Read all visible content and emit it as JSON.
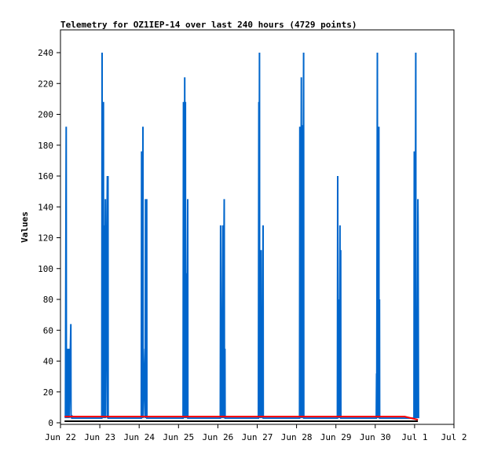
{
  "chart_data": {
    "type": "line",
    "title": "Telemetry for OZ1IEP-14 over last 240 hours (4729 points)",
    "xlabel": "",
    "ylabel": "Values",
    "xlim": [
      0,
      240
    ],
    "ylim": [
      0,
      255
    ],
    "grid": false,
    "legend": "none",
    "x_tick_labels": [
      {
        "label": "Jun 22",
        "hour": 0
      },
      {
        "label": "Jun 23",
        "hour": 24
      },
      {
        "label": "Jun 24",
        "hour": 48
      },
      {
        "label": "Jun 25",
        "hour": 72
      },
      {
        "label": "Jun 26",
        "hour": 96
      },
      {
        "label": "Jun 27",
        "hour": 120
      },
      {
        "label": "Jun 28",
        "hour": 144
      },
      {
        "label": "Jun 29",
        "hour": 168
      },
      {
        "label": "Jun 30",
        "hour": 192
      },
      {
        "label": "Jul 1",
        "hour": 216
      },
      {
        "label": "Jul 2",
        "hour": 240
      }
    ],
    "y_ticks": [
      0,
      20,
      40,
      60,
      80,
      100,
      120,
      140,
      160,
      180,
      200,
      220,
      240
    ],
    "series": [
      {
        "color": "#0066cc",
        "x": [
          3.0,
          3.5,
          3.6,
          4.3,
          4.4,
          5.1,
          5.2,
          6.3,
          6.4,
          6.9,
          7.0,
          7.6,
          7.7,
          8.5,
          25.2,
          25.4,
          25.5,
          25.8,
          25.9,
          26.2,
          26.3,
          26.7,
          26.8,
          27.4,
          27.5,
          28.6,
          28.7,
          29.0,
          29.1,
          49.3,
          49.5,
          49.6,
          49.9,
          50.0,
          50.3,
          50.4,
          51.6,
          51.7,
          51.9,
          52.0,
          52.3,
          52.4,
          52.6,
          52.7,
          74.8,
          75.0,
          75.1,
          75.5,
          75.6,
          75.8,
          75.9,
          76.2,
          76.3,
          76.8,
          76.9,
          77.6,
          77.7,
          78.0,
          78.1,
          97.5,
          97.7,
          97.8,
          98.2,
          98.3,
          99.0,
          99.1,
          99.9,
          100.0,
          100.3,
          100.4,
          120.7,
          121.0,
          121.1,
          121.4,
          121.5,
          121.7,
          121.8,
          122.4,
          122.5,
          123.0,
          123.1,
          123.6,
          123.7,
          145.8,
          146.0,
          146.1,
          146.4,
          146.5,
          146.9,
          147.0,
          147.6,
          147.7,
          148.3,
          148.4,
          168.9,
          169.1,
          169.2,
          169.5,
          169.6,
          169.9,
          170.0,
          170.5,
          170.6,
          170.9,
          171.0,
          192.6,
          192.8,
          192.9,
          193.3,
          193.4,
          193.8,
          193.9,
          194.2,
          194.3,
          194.6,
          194.7,
          215.6,
          215.8,
          215.9,
          216.2,
          216.3,
          216.7,
          216.8,
          217.4,
          217.5,
          218.0,
          218.1,
          218.4
        ],
        "y": [
          3,
          192,
          3,
          48,
          3,
          48,
          3,
          64,
          3,
          5,
          3,
          3,
          3,
          3,
          3,
          240,
          3,
          128,
          3,
          208,
          3,
          128,
          3,
          145,
          3,
          160,
          3,
          160,
          3,
          3,
          176,
          3,
          112,
          3,
          192,
          3,
          48,
          3,
          145,
          3,
          64,
          3,
          145,
          3,
          3,
          208,
          3,
          112,
          3,
          224,
          3,
          208,
          3,
          97,
          3,
          145,
          3,
          3,
          3,
          3,
          128,
          3,
          48,
          3,
          128,
          3,
          145,
          3,
          48,
          3,
          3,
          208,
          3,
          240,
          3,
          80,
          3,
          112,
          3,
          64,
          3,
          128,
          3,
          3,
          192,
          3,
          97,
          3,
          224,
          3,
          193,
          3,
          240,
          3,
          3,
          160,
          3,
          80,
          3,
          48,
          3,
          128,
          3,
          112,
          3,
          3,
          32,
          3,
          240,
          3,
          64,
          3,
          192,
          3,
          80,
          3,
          3,
          176,
          3,
          128,
          3,
          240,
          3,
          32,
          3,
          145,
          128,
          3
        ]
      },
      {
        "color": "#ff0000",
        "x": [
          2.5,
          4.5,
          210.0,
          214.0,
          218.0
        ],
        "y": [
          4,
          4,
          4,
          3,
          2
        ]
      },
      {
        "color": "#000000",
        "x": [
          2.5,
          218.0
        ],
        "y": [
          1,
          1
        ]
      }
    ]
  }
}
